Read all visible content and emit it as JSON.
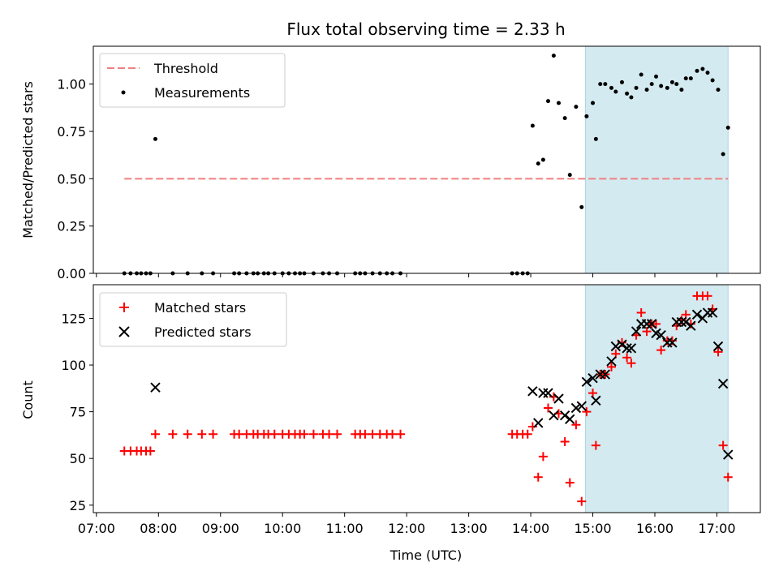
{
  "chart_data": [
    {
      "type": "scatter",
      "title": "Flux total observing time = 2.33 h",
      "xlabel": "",
      "ylabel": "Matched/Predicted stars",
      "xlim": [
        6.95,
        17.7
      ],
      "ylim": [
        0.0,
        1.2
      ],
      "yticks": [
        0.0,
        0.25,
        0.5,
        0.75,
        1.0
      ],
      "ytick_labels": [
        "0.00",
        "0.25",
        "0.50",
        "0.75",
        "1.00"
      ],
      "shaded_region": {
        "x_start": 14.88,
        "x_end": 17.18,
        "color": "#d3eaf0"
      },
      "threshold": {
        "name": "Threshold",
        "value": 0.5,
        "x_start": 7.45,
        "x_end": 17.18,
        "color": "#f08080"
      },
      "legend": {
        "position": "top-left",
        "entries": [
          "Threshold",
          "Measurements"
        ]
      },
      "series": [
        {
          "name": "Measurements",
          "color": "#000000",
          "points": [
            [
              7.45,
              0
            ],
            [
              7.55,
              0
            ],
            [
              7.65,
              0
            ],
            [
              7.72,
              0
            ],
            [
              7.8,
              0
            ],
            [
              7.87,
              0
            ],
            [
              7.95,
              0.71
            ],
            [
              8.23,
              0
            ],
            [
              8.47,
              0
            ],
            [
              8.7,
              0
            ],
            [
              8.88,
              0
            ],
            [
              9.22,
              0
            ],
            [
              9.3,
              0
            ],
            [
              9.42,
              0
            ],
            [
              9.53,
              0
            ],
            [
              9.6,
              0
            ],
            [
              9.7,
              0
            ],
            [
              9.77,
              0
            ],
            [
              9.87,
              0
            ],
            [
              10.0,
              0
            ],
            [
              10.1,
              0
            ],
            [
              10.2,
              0
            ],
            [
              10.28,
              0
            ],
            [
              10.35,
              0
            ],
            [
              10.5,
              0
            ],
            [
              10.65,
              0
            ],
            [
              10.75,
              0
            ],
            [
              10.88,
              0
            ],
            [
              11.17,
              0
            ],
            [
              11.25,
              0
            ],
            [
              11.33,
              0
            ],
            [
              11.45,
              0
            ],
            [
              11.57,
              0
            ],
            [
              11.68,
              0
            ],
            [
              11.77,
              0
            ],
            [
              11.9,
              0
            ],
            [
              13.7,
              0
            ],
            [
              13.78,
              0
            ],
            [
              13.87,
              0
            ],
            [
              13.95,
              0
            ],
            [
              14.03,
              0.78
            ],
            [
              14.12,
              0.58
            ],
            [
              14.2,
              0.6
            ],
            [
              14.28,
              0.91
            ],
            [
              14.37,
              1.15
            ],
            [
              14.45,
              0.9
            ],
            [
              14.55,
              0.82
            ],
            [
              14.63,
              0.52
            ],
            [
              14.73,
              0.88
            ],
            [
              14.82,
              0.35
            ],
            [
              14.9,
              0.83
            ],
            [
              15.0,
              0.9
            ],
            [
              15.05,
              0.71
            ],
            [
              15.12,
              1.0
            ],
            [
              15.2,
              1.0
            ],
            [
              15.3,
              0.98
            ],
            [
              15.37,
              0.96
            ],
            [
              15.47,
              1.01
            ],
            [
              15.55,
              0.95
            ],
            [
              15.62,
              0.93
            ],
            [
              15.7,
              0.98
            ],
            [
              15.78,
              1.05
            ],
            [
              15.87,
              0.97
            ],
            [
              15.95,
              1.0
            ],
            [
              16.02,
              1.04
            ],
            [
              16.1,
              0.99
            ],
            [
              16.2,
              0.98
            ],
            [
              16.28,
              1.01
            ],
            [
              16.35,
              1.0
            ],
            [
              16.43,
              0.97
            ],
            [
              16.5,
              1.03
            ],
            [
              16.58,
              1.03
            ],
            [
              16.68,
              1.07
            ],
            [
              16.77,
              1.08
            ],
            [
              16.85,
              1.06
            ],
            [
              16.93,
              1.02
            ],
            [
              17.02,
              0.97
            ],
            [
              17.1,
              0.63
            ],
            [
              17.18,
              0.77
            ]
          ]
        }
      ]
    },
    {
      "type": "scatter",
      "title": "",
      "xlabel": "Time (UTC)",
      "ylabel": "Count",
      "xlim": [
        6.95,
        17.7
      ],
      "ylim": [
        21,
        143
      ],
      "xticks": [
        7,
        8,
        9,
        10,
        11,
        12,
        13,
        14,
        15,
        16,
        17
      ],
      "xtick_labels": [
        "07:00",
        "08:00",
        "09:00",
        "10:00",
        "11:00",
        "12:00",
        "13:00",
        "14:00",
        "15:00",
        "16:00",
        "17:00"
      ],
      "yticks": [
        25,
        50,
        75,
        100,
        125
      ],
      "ytick_labels": [
        "25",
        "50",
        "75",
        "100",
        "125"
      ],
      "shaded_region": {
        "x_start": 14.88,
        "x_end": 17.18,
        "color": "#d3eaf0"
      },
      "legend": {
        "position": "top-left",
        "entries": [
          "Matched stars",
          "Predicted stars"
        ]
      },
      "series": [
        {
          "name": "Matched stars",
          "color": "#ff0000",
          "marker": "+",
          "points": [
            [
              7.45,
              54
            ],
            [
              7.55,
              54
            ],
            [
              7.65,
              54
            ],
            [
              7.72,
              54
            ],
            [
              7.8,
              54
            ],
            [
              7.87,
              54
            ],
            [
              7.95,
              63
            ],
            [
              8.23,
              63
            ],
            [
              8.47,
              63
            ],
            [
              8.7,
              63
            ],
            [
              8.88,
              63
            ],
            [
              9.22,
              63
            ],
            [
              9.3,
              63
            ],
            [
              9.42,
              63
            ],
            [
              9.53,
              63
            ],
            [
              9.6,
              63
            ],
            [
              9.7,
              63
            ],
            [
              9.77,
              63
            ],
            [
              9.87,
              63
            ],
            [
              10.0,
              63
            ],
            [
              10.1,
              63
            ],
            [
              10.2,
              63
            ],
            [
              10.28,
              63
            ],
            [
              10.35,
              63
            ],
            [
              10.5,
              63
            ],
            [
              10.65,
              63
            ],
            [
              10.75,
              63
            ],
            [
              10.88,
              63
            ],
            [
              11.17,
              63
            ],
            [
              11.25,
              63
            ],
            [
              11.33,
              63
            ],
            [
              11.45,
              63
            ],
            [
              11.57,
              63
            ],
            [
              11.68,
              63
            ],
            [
              11.77,
              63
            ],
            [
              11.9,
              63
            ],
            [
              13.7,
              63
            ],
            [
              13.78,
              63
            ],
            [
              13.87,
              63
            ],
            [
              13.95,
              63
            ],
            [
              14.03,
              67
            ],
            [
              14.12,
              40
            ],
            [
              14.2,
              51
            ],
            [
              14.28,
              77
            ],
            [
              14.37,
              83
            ],
            [
              14.45,
              74
            ],
            [
              14.55,
              59
            ],
            [
              14.63,
              37
            ],
            [
              14.73,
              68
            ],
            [
              14.82,
              27
            ],
            [
              14.9,
              75
            ],
            [
              15.0,
              85
            ],
            [
              15.05,
              57
            ],
            [
              15.12,
              95
            ],
            [
              15.2,
              95
            ],
            [
              15.3,
              99
            ],
            [
              15.37,
              106
            ],
            [
              15.47,
              112
            ],
            [
              15.55,
              104
            ],
            [
              15.62,
              101
            ],
            [
              15.7,
              116
            ],
            [
              15.78,
              128
            ],
            [
              15.87,
              118
            ],
            [
              15.95,
              122
            ],
            [
              16.02,
              122
            ],
            [
              16.1,
              108
            ],
            [
              16.2,
              113
            ],
            [
              16.28,
              113
            ],
            [
              16.35,
              121
            ],
            [
              16.43,
              124
            ],
            [
              16.5,
              127
            ],
            [
              16.58,
              122
            ],
            [
              16.68,
              137
            ],
            [
              16.77,
              137
            ],
            [
              16.85,
              137
            ],
            [
              16.93,
              130
            ],
            [
              17.02,
              107
            ],
            [
              17.1,
              57
            ],
            [
              17.18,
              40
            ]
          ]
        },
        {
          "name": "Predicted stars",
          "color": "#000000",
          "marker": "x",
          "points": [
            [
              7.95,
              88
            ],
            [
              14.03,
              86
            ],
            [
              14.12,
              69
            ],
            [
              14.2,
              85
            ],
            [
              14.28,
              85
            ],
            [
              14.37,
              73
            ],
            [
              14.45,
              82
            ],
            [
              14.55,
              73
            ],
            [
              14.63,
              71
            ],
            [
              14.73,
              77
            ],
            [
              14.82,
              78
            ],
            [
              14.9,
              91
            ],
            [
              15.0,
              93
            ],
            [
              15.05,
              81
            ],
            [
              15.12,
              95
            ],
            [
              15.2,
              95
            ],
            [
              15.3,
              102
            ],
            [
              15.37,
              110
            ],
            [
              15.47,
              111
            ],
            [
              15.55,
              109
            ],
            [
              15.62,
              109
            ],
            [
              15.7,
              118
            ],
            [
              15.78,
              122
            ],
            [
              15.87,
              122
            ],
            [
              15.95,
              122
            ],
            [
              16.02,
              117
            ],
            [
              16.1,
              116
            ],
            [
              16.2,
              112
            ],
            [
              16.28,
              112
            ],
            [
              16.35,
              123
            ],
            [
              16.43,
              123
            ],
            [
              16.5,
              123
            ],
            [
              16.58,
              121
            ],
            [
              16.68,
              127
            ],
            [
              16.77,
              125
            ],
            [
              16.85,
              128
            ],
            [
              16.93,
              128
            ],
            [
              17.02,
              110
            ],
            [
              17.1,
              90
            ],
            [
              17.18,
              52
            ]
          ]
        }
      ]
    }
  ]
}
